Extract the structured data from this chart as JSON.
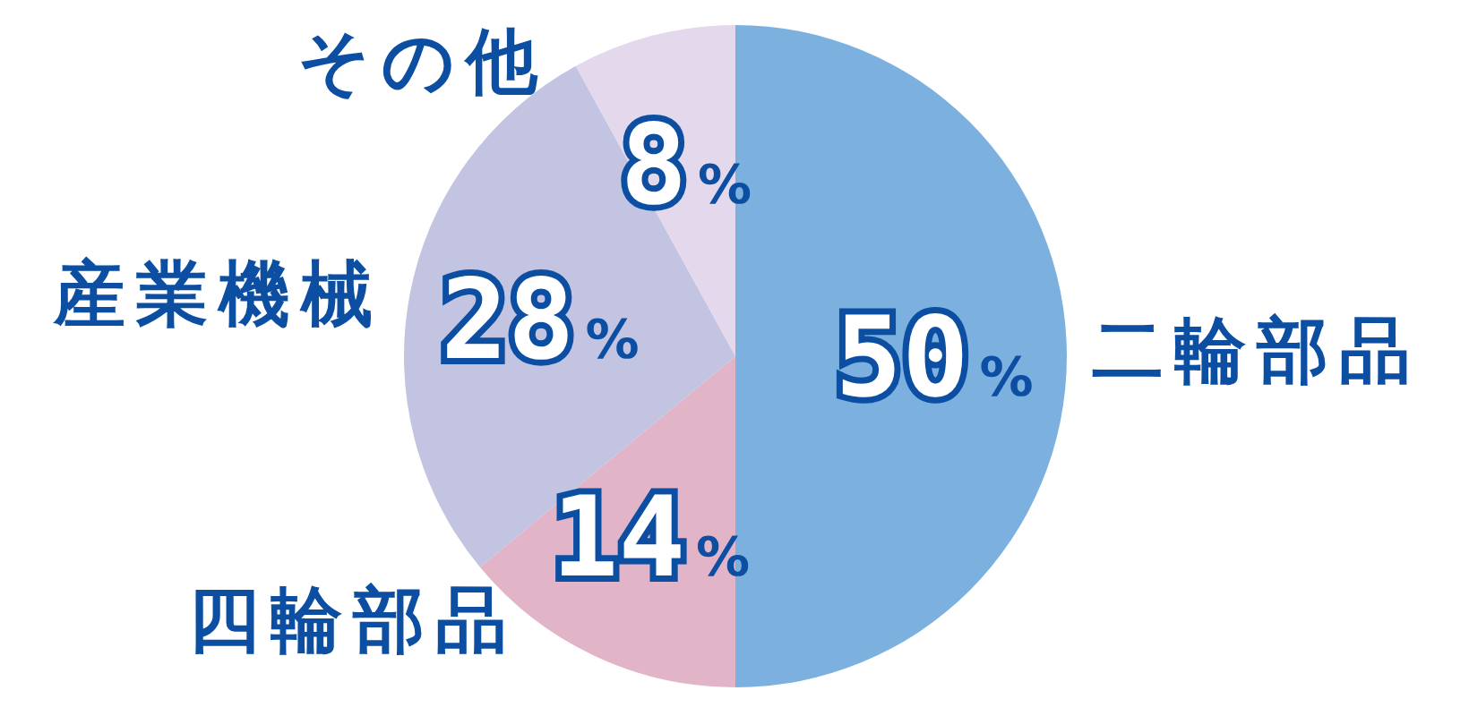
{
  "chart_data": {
    "type": "pie",
    "categories": [
      "二輪部品",
      "四輪部品",
      "産業機械",
      "その他"
    ],
    "values": [
      50,
      14,
      28,
      8
    ],
    "colors": [
      "#7cb0de",
      "#e2b4c8",
      "#c2c4e2",
      "#e4d8ec"
    ],
    "value_labels": [
      "50%",
      "14%",
      "28%",
      "8%"
    ]
  }
}
